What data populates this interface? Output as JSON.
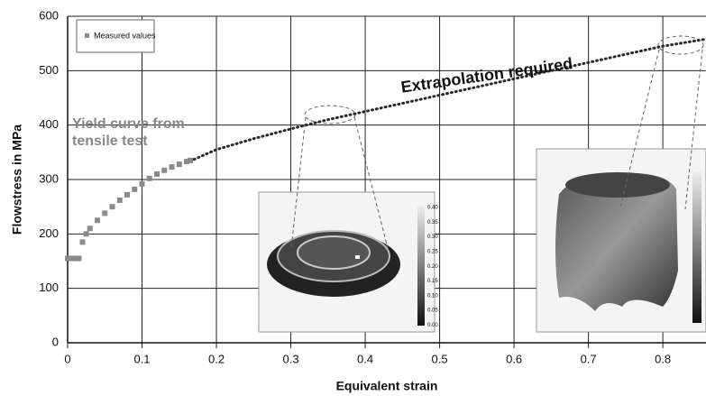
{
  "chart_data": {
    "type": "scatter",
    "xlabel": "Equivalent strain",
    "ylabel": "Flowstress in MPa",
    "xlim": [
      0,
      0.858
    ],
    "ylim": [
      0,
      600
    ],
    "xticks": [
      0,
      0.1,
      0.2,
      0.3,
      0.4,
      0.5,
      0.6,
      0.7,
      0.8
    ],
    "yticks": [
      0,
      100,
      200,
      300,
      400,
      500,
      600
    ],
    "grid": true,
    "legend": "upper left",
    "annotations": {
      "yield": [
        "Yield curve from",
        "tensile test"
      ],
      "extrapolation": "Extrapolation required"
    },
    "inset_colorbar_labels": [
      "0.40",
      "0.35",
      "0.30",
      "0.25",
      "0.20",
      "0.15",
      "0.10",
      "0.05",
      "0.00"
    ],
    "series": [
      {
        "name": "Measured values",
        "color": "#8a8a8a",
        "style": "points",
        "x": [
          0,
          0.005,
          0.01,
          0.015,
          0.02,
          0.025,
          0.03,
          0.04,
          0.05,
          0.06,
          0.07,
          0.08,
          0.09,
          0.1,
          0.11,
          0.12,
          0.13,
          0.14,
          0.15,
          0.16,
          0.165
        ],
        "values": [
          155,
          155,
          155,
          155,
          185,
          200,
          210,
          225,
          238,
          250,
          262,
          272,
          282,
          292,
          302,
          310,
          317,
          323,
          328,
          333,
          335
        ]
      },
      {
        "color": "#2a2a2a",
        "style": "dotted",
        "x": [
          0.17,
          0.2,
          0.25,
          0.3,
          0.35,
          0.4,
          0.45,
          0.5,
          0.55,
          0.6,
          0.65,
          0.7,
          0.75,
          0.8,
          0.858
        ],
        "values": [
          337,
          355,
          375,
          393,
          410,
          425,
          440,
          455,
          470,
          485,
          500,
          515,
          530,
          545,
          558
        ]
      }
    ]
  }
}
